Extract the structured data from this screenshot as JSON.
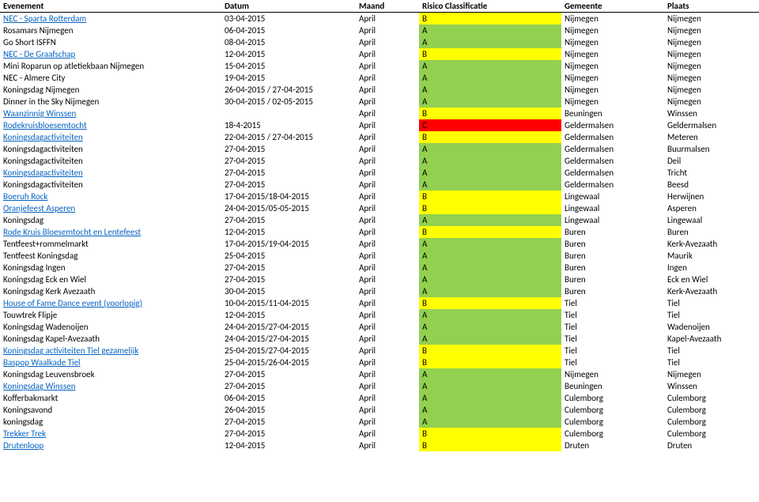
{
  "headers": {
    "event": "Evenement",
    "date": "Datum",
    "month": "Maand",
    "risk": "Risico Classificatie",
    "gemeente": "Gemeente",
    "plaats": "Plaats"
  },
  "risk_colors": {
    "A": "#92d050",
    "B": "#ffff00",
    "C": "#ff0000"
  },
  "rows": [
    {
      "event": "NEC - Sparta Rotterdam",
      "link": true,
      "date": "03-04-2015",
      "month": "April",
      "risk": "B",
      "gemeente": "Nijmegen",
      "plaats": "Nijmegen"
    },
    {
      "event": "Rosamars Nijmegen",
      "link": false,
      "date": "06-04-2015",
      "month": "April",
      "risk": "A",
      "gemeente": "Nijmegen",
      "plaats": "Nijmegen"
    },
    {
      "event": "Go Short ISFFN",
      "link": false,
      "date": "08-04-2015",
      "month": "April",
      "risk": "A",
      "gemeente": "Nijmegen",
      "plaats": "Nijmegen"
    },
    {
      "event": "NEC - De Graafschap",
      "link": true,
      "date": "12-04-2015",
      "month": "April",
      "risk": "B",
      "gemeente": "Nijmegen",
      "plaats": "Nijmegen"
    },
    {
      "event": "Mini Roparun op atletiekbaan Nijmegen",
      "link": false,
      "date": "15-04-2015",
      "month": "April",
      "risk": "A",
      "gemeente": "Nijmegen",
      "plaats": "Nijmegen"
    },
    {
      "event": "NEC - Almere City",
      "link": false,
      "date": "19-04-2015",
      "month": "April",
      "risk": "A",
      "gemeente": "Nijmegen",
      "plaats": "Nijmegen"
    },
    {
      "event": "Koningsdag Nijmegen",
      "link": false,
      "date": "26-04-2015 / 27-04-2015",
      "month": "April",
      "risk": "A",
      "gemeente": "Nijmegen",
      "plaats": "Nijmegen"
    },
    {
      "event": "Dinner in the Sky Nijmegen",
      "link": false,
      "date": "30-04-2015 / 02-05-2015",
      "month": "April",
      "risk": "A",
      "gemeente": "Nijmegen",
      "plaats": "Nijmegen"
    },
    {
      "event": "Waanzinnig Winssen",
      "link": true,
      "date": "",
      "month": "April",
      "risk": "B",
      "gemeente": "Beuningen",
      "plaats": "Winssen"
    },
    {
      "event": "Rodekruisbloesemtocht",
      "link": true,
      "date": "18-4-2015",
      "month": "April",
      "risk": "C",
      "gemeente": "Geldermalsen",
      "plaats": "Geldermalsen"
    },
    {
      "event": "Koningsdagactiviteiten",
      "link": true,
      "date": "22-04-2015 / 27-04-2015",
      "month": "April",
      "risk": "B",
      "gemeente": "Geldermalsen",
      "plaats": "Meteren"
    },
    {
      "event": "Koningsdagactiviteiten",
      "link": false,
      "date": "27-04-2015",
      "month": "April",
      "risk": "A",
      "gemeente": "Geldermalsen",
      "plaats": "Buurmalsen"
    },
    {
      "event": "Koningsdagactiviteiten",
      "link": false,
      "date": "27-04-2015",
      "month": "April",
      "risk": "A",
      "gemeente": "Geldermalsen",
      "plaats": "Deil"
    },
    {
      "event": "Koningsdagactiviteiten",
      "link": true,
      "date": "27-04-2015",
      "month": "April",
      "risk": "A",
      "gemeente": "Geldermalsen",
      "plaats": "Tricht"
    },
    {
      "event": "Koningsdagactiviteiten",
      "link": false,
      "date": "27-04-2015",
      "month": "April",
      "risk": "A",
      "gemeente": "Geldermalsen",
      "plaats": "Beesd"
    },
    {
      "event": "Boeruh Rock",
      "link": true,
      "date": "17-04-2015/18-04-2015",
      "month": "April",
      "risk": "B",
      "gemeente": "Lingewaal",
      "plaats": "Herwijnen"
    },
    {
      "event": "Oranjefeest Asperen",
      "link": true,
      "date": "24-04-2015/05-05-2015",
      "month": "April",
      "risk": "B",
      "gemeente": "Lingewaal",
      "plaats": "Asperen"
    },
    {
      "event": "Koningsdag",
      "link": false,
      "date": "27-04-2015",
      "month": "April",
      "risk": "A",
      "gemeente": "Lingewaal",
      "plaats": "Lingewaal"
    },
    {
      "event": "Rode Kruis Bloesemtocht en Lentefeest",
      "link": true,
      "date": "12-04-2015",
      "month": "April",
      "risk": "B",
      "gemeente": "Buren",
      "plaats": "Buren"
    },
    {
      "event": "Tentfeest+rommelmarkt",
      "link": false,
      "date": "17-04-2015/19-04-2015",
      "month": "April",
      "risk": "A",
      "gemeente": "Buren",
      "plaats": "Kerk-Avezaath"
    },
    {
      "event": "Tentfeest Koningsdag",
      "link": false,
      "date": "25-04-2015",
      "month": "April",
      "risk": "A",
      "gemeente": "Buren",
      "plaats": "Maurik"
    },
    {
      "event": "Koningsdag Ingen",
      "link": false,
      "date": "27-04-2015",
      "month": "April",
      "risk": "A",
      "gemeente": "Buren",
      "plaats": "Ingen"
    },
    {
      "event": "Koningsdag Eck en Wiel",
      "link": false,
      "date": "27-04-2015",
      "month": "April",
      "risk": "A",
      "gemeente": "Buren",
      "plaats": "Eck en Wiel"
    },
    {
      "event": "Koningsdag Kerk Avezaath",
      "link": false,
      "date": "30-04-2015",
      "month": "April",
      "risk": "A",
      "gemeente": "Buren",
      "plaats": "Kerk-Avezaath"
    },
    {
      "event": "House of Fame Dance event (voorlopig)",
      "link": true,
      "date": "10-04-2015/11-04-2015",
      "month": "April",
      "risk": "B",
      "gemeente": "Tiel",
      "plaats": "Tiel"
    },
    {
      "event": "Touwtrek Flipje",
      "link": false,
      "date": "12-04-2015",
      "month": "April",
      "risk": "A",
      "gemeente": "Tiel",
      "plaats": "Tiel"
    },
    {
      "event": "Koningsdag Wadenoijen",
      "link": false,
      "date": "24-04-2015/27-04-2015",
      "month": "April",
      "risk": "A",
      "gemeente": "Tiel",
      "plaats": "Wadenoijen"
    },
    {
      "event": "Koningsdag Kapel-Avezaath",
      "link": false,
      "date": "24-04-2015/27-04-2015",
      "month": "April",
      "risk": "A",
      "gemeente": "Tiel",
      "plaats": "Kapel-Avezaath"
    },
    {
      "event": "Koningsdag activiteiten Tiel gezamelijk",
      "link": true,
      "date": "25-04-2015/27-04-2015",
      "month": "April",
      "risk": "B",
      "gemeente": "Tiel",
      "plaats": "Tiel"
    },
    {
      "event": "Baspop Waalkade Tiel",
      "link": true,
      "date": "25-04-2015/26-04-2015",
      "month": "April",
      "risk": "B",
      "gemeente": "Tiel",
      "plaats": "Tiel"
    },
    {
      "event": "Koningsdag Leuvensbroek",
      "link": false,
      "date": "27-04-2015",
      "month": "April",
      "risk": "A",
      "gemeente": "Nijmegen",
      "plaats": "Nijmegen"
    },
    {
      "event": "Koningsdag Winssen",
      "link": true,
      "date": "27-04-2015",
      "month": "April",
      "risk": "A",
      "gemeente": "Beuningen",
      "plaats": "Winssen"
    },
    {
      "event": "Kofferbakmarkt",
      "link": false,
      "date": "06-04-2015",
      "month": "April",
      "risk": "A",
      "gemeente": "Culemborg",
      "plaats": "Culemborg"
    },
    {
      "event": "Koningsavond",
      "link": false,
      "date": "26-04-2015",
      "month": "April",
      "risk": "A",
      "gemeente": "Culemborg",
      "plaats": "Culemborg"
    },
    {
      "event": "koningsdag",
      "link": false,
      "date": "27-04-2015",
      "month": "April",
      "risk": "A",
      "gemeente": "Culemborg",
      "plaats": "Culemborg"
    },
    {
      "event": "Trekker Trek",
      "link": true,
      "date": "27-04-2015",
      "month": "April",
      "risk": "B",
      "gemeente": "Culemborg",
      "plaats": "Culemborg"
    },
    {
      "event": "Drutenloop",
      "link": true,
      "date": "12-04-2015",
      "month": "April",
      "risk": "B",
      "gemeente": "Druten",
      "plaats": "Druten"
    }
  ]
}
